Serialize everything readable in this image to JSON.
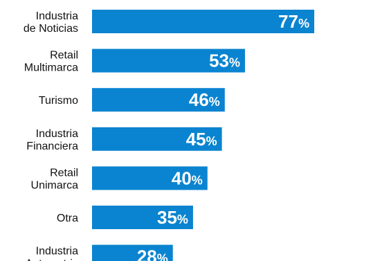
{
  "chart_data": {
    "type": "bar",
    "orientation": "horizontal",
    "bar_color": "#0A84D0",
    "value_text_color": "#ffffff",
    "label_text_color": "#111111",
    "background_color": "#ffffff",
    "value_suffix": "%",
    "categories": [
      [
        "Industria",
        "de Noticias"
      ],
      [
        "Retail",
        "Multimarca"
      ],
      [
        "Turismo"
      ],
      [
        "Industria",
        "Financiera"
      ],
      [
        "Retail",
        "Unimarca"
      ],
      [
        "Otra"
      ],
      [
        "Industria",
        "Automotriz"
      ]
    ],
    "values": [
      77,
      53,
      46,
      45,
      40,
      35,
      28
    ],
    "value_labels": [
      "77",
      "53",
      "46",
      "45",
      "40",
      "35",
      "28"
    ],
    "title": "",
    "xlabel": "",
    "ylabel": "",
    "xlim": [
      0,
      100
    ],
    "grid": false,
    "legend": "none"
  }
}
